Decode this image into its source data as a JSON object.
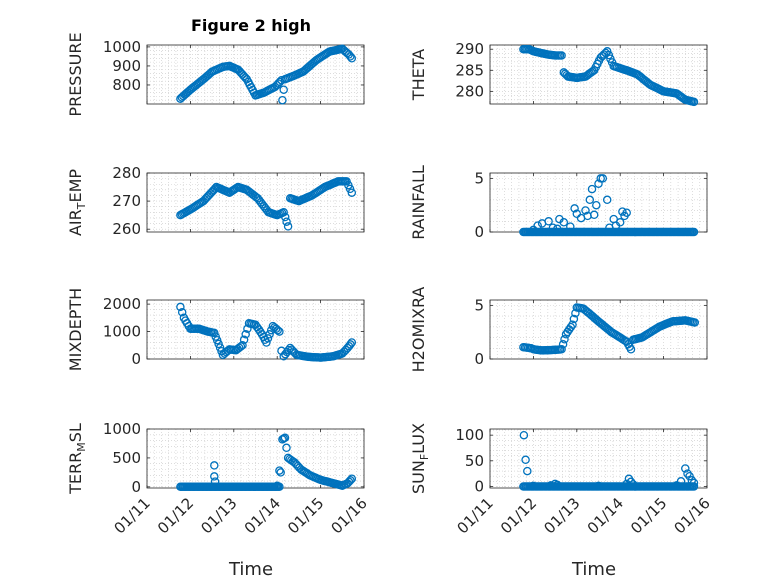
{
  "figure": {
    "title": "Figure 2 high"
  },
  "x_axis": {
    "label": "Time",
    "tick_labels": [
      "01/11",
      "01/12",
      "01/13",
      "01/14",
      "01/15",
      "01/16"
    ],
    "range_days": [
      "01/11",
      "01/16"
    ]
  },
  "colors": {
    "marker": "#0072BD",
    "grid": "#c8c8c8",
    "axis": "#262626"
  },
  "chart_data": [
    {
      "type": "scatter",
      "id": "pressure",
      "ylabel": {
        "main": "PRESSURE",
        "sub": "",
        "tail": ""
      },
      "yticks": [
        "800",
        "900",
        "1000"
      ],
      "ytick_values": [
        800,
        900,
        1000
      ],
      "ylim": [
        700,
        1010
      ],
      "keypoints": [
        [
          11.77,
          728
        ],
        [
          12.0,
          775
        ],
        [
          12.3,
          830
        ],
        [
          12.5,
          870
        ],
        [
          12.75,
          895
        ],
        [
          12.9,
          900
        ],
        [
          13.1,
          880
        ],
        [
          13.3,
          830
        ],
        [
          13.5,
          745
        ],
        [
          13.7,
          760
        ],
        [
          13.95,
          790
        ],
        [
          14.1,
          825
        ],
        [
          14.12,
          720
        ],
        [
          14.18,
          830
        ],
        [
          14.4,
          850
        ],
        [
          14.6,
          870
        ],
        [
          14.9,
          930
        ],
        [
          15.2,
          975
        ],
        [
          15.5,
          990
        ],
        [
          15.65,
          960
        ],
        [
          15.72,
          940
        ]
      ]
    },
    {
      "type": "scatter",
      "id": "theta",
      "ylabel": {
        "main": "THETA",
        "sub": "",
        "tail": ""
      },
      "yticks": [
        "280",
        "285",
        "290"
      ],
      "ytick_values": [
        280,
        285,
        290
      ],
      "ylim": [
        277,
        291
      ],
      "keypoints": [
        [
          11.77,
          290
        ],
        [
          11.9,
          290
        ],
        [
          12.0,
          289.5
        ],
        [
          12.3,
          288.8
        ],
        [
          12.5,
          288.5
        ],
        [
          12.65,
          288.5
        ],
        [
          12.7,
          284.5
        ],
        [
          12.8,
          283.5
        ],
        [
          13.0,
          283.2
        ],
        [
          13.2,
          283.5
        ],
        [
          13.4,
          285
        ],
        [
          13.55,
          288
        ],
        [
          13.7,
          289.5
        ],
        [
          13.85,
          286
        ],
        [
          14.0,
          285.5
        ],
        [
          14.2,
          284.8
        ],
        [
          14.4,
          284
        ],
        [
          14.7,
          281.5
        ],
        [
          15.0,
          280
        ],
        [
          15.3,
          279.5
        ],
        [
          15.5,
          278
        ],
        [
          15.7,
          277.5
        ]
      ]
    },
    {
      "type": "scatter",
      "id": "air_temp",
      "ylabel": {
        "main": "AIR",
        "sub": "T",
        "tail": "EMP"
      },
      "yticks": [
        "260",
        "270",
        "280"
      ],
      "ytick_values": [
        260,
        270,
        280
      ],
      "ylim": [
        259,
        280
      ],
      "keypoints": [
        [
          11.77,
          265
        ],
        [
          12.0,
          267
        ],
        [
          12.3,
          270
        ],
        [
          12.6,
          275
        ],
        [
          12.9,
          273
        ],
        [
          13.1,
          275
        ],
        [
          13.3,
          274
        ],
        [
          13.55,
          271
        ],
        [
          13.8,
          266
        ],
        [
          14.0,
          265
        ],
        [
          14.15,
          266
        ],
        [
          14.25,
          261
        ],
        [
          14.3,
          271
        ],
        [
          14.5,
          270
        ],
        [
          14.8,
          272
        ],
        [
          15.1,
          275
        ],
        [
          15.4,
          277
        ],
        [
          15.6,
          277
        ],
        [
          15.72,
          273
        ]
      ]
    },
    {
      "type": "scatter",
      "id": "rainfall",
      "ylabel": {
        "main": "RAINFALL",
        "sub": "",
        "tail": ""
      },
      "yticks": [
        "0",
        "5"
      ],
      "ytick_values": [
        0,
        5
      ],
      "ylim": [
        0,
        5.5
      ],
      "baseline_span": [
        11.77,
        15.72
      ],
      "spikes": [
        [
          12.0,
          0.2
        ],
        [
          12.1,
          0.6
        ],
        [
          12.2,
          0.8
        ],
        [
          12.35,
          1.0
        ],
        [
          12.45,
          0.4
        ],
        [
          12.55,
          0.3
        ],
        [
          12.6,
          1.2
        ],
        [
          12.7,
          0.9
        ],
        [
          12.85,
          0.5
        ],
        [
          12.95,
          2.2
        ],
        [
          13.0,
          1.7
        ],
        [
          13.1,
          1.3
        ],
        [
          13.2,
          2.0
        ],
        [
          13.25,
          1.5
        ],
        [
          13.3,
          3.0
        ],
        [
          13.35,
          4.0
        ],
        [
          13.4,
          1.6
        ],
        [
          13.45,
          2.5
        ],
        [
          13.5,
          4.5
        ],
        [
          13.55,
          5.0
        ],
        [
          13.6,
          5.0
        ],
        [
          13.7,
          3.0
        ],
        [
          13.75,
          0.4
        ],
        [
          13.85,
          1.2
        ],
        [
          13.9,
          0.6
        ],
        [
          14.0,
          0.9
        ],
        [
          14.05,
          1.9
        ],
        [
          14.1,
          1.5
        ],
        [
          14.15,
          1.8
        ]
      ]
    },
    {
      "type": "scatter",
      "id": "mixdepth",
      "ylabel": {
        "main": "MIXDEPTH",
        "sub": "",
        "tail": ""
      },
      "yticks": [
        "0",
        "1000",
        "2000"
      ],
      "ytick_values": [
        0,
        1000,
        2000
      ],
      "ylim": [
        0,
        2150
      ],
      "keypoints": [
        [
          11.77,
          1900
        ],
        [
          11.85,
          1500
        ],
        [
          12.0,
          1100
        ],
        [
          12.2,
          1100
        ],
        [
          12.4,
          1000
        ],
        [
          12.55,
          950
        ],
        [
          12.65,
          550
        ],
        [
          12.75,
          150
        ],
        [
          12.9,
          350
        ],
        [
          13.05,
          320
        ],
        [
          13.2,
          500
        ],
        [
          13.35,
          1300
        ],
        [
          13.5,
          1250
        ],
        [
          13.65,
          900
        ],
        [
          13.75,
          600
        ],
        [
          13.9,
          1200
        ],
        [
          14.05,
          1000
        ],
        [
          14.1,
          300
        ],
        [
          14.15,
          100
        ],
        [
          14.3,
          400
        ],
        [
          14.45,
          150
        ],
        [
          14.7,
          80
        ],
        [
          15.0,
          50
        ],
        [
          15.3,
          100
        ],
        [
          15.5,
          200
        ],
        [
          15.62,
          400
        ],
        [
          15.72,
          600
        ]
      ]
    },
    {
      "type": "scatter",
      "id": "h2omixra",
      "ylabel": {
        "main": "H2OMIXRA",
        "sub": "",
        "tail": ""
      },
      "yticks": [
        "0",
        "5"
      ],
      "ytick_values": [
        0,
        5
      ],
      "ylim": [
        0,
        5.5
      ],
      "keypoints": [
        [
          11.77,
          1.1
        ],
        [
          11.95,
          1.0
        ],
        [
          12.0,
          0.9
        ],
        [
          12.2,
          0.8
        ],
        [
          12.5,
          0.85
        ],
        [
          12.65,
          0.9
        ],
        [
          12.75,
          2.3
        ],
        [
          12.9,
          3.2
        ],
        [
          13.0,
          4.8
        ],
        [
          13.15,
          4.7
        ],
        [
          13.3,
          4.2
        ],
        [
          13.5,
          3.5
        ],
        [
          13.8,
          2.5
        ],
        [
          14.0,
          2.0
        ],
        [
          14.15,
          1.6
        ],
        [
          14.25,
          0.9
        ],
        [
          14.3,
          1.8
        ],
        [
          14.5,
          2.0
        ],
        [
          14.7,
          2.5
        ],
        [
          14.9,
          3.0
        ],
        [
          15.2,
          3.5
        ],
        [
          15.5,
          3.6
        ],
        [
          15.72,
          3.4
        ]
      ]
    },
    {
      "type": "scatter",
      "id": "terr_msl",
      "ylabel": {
        "main": "TERR",
        "sub": "M",
        "tail": "SL"
      },
      "yticks": [
        "0",
        "500",
        "1000"
      ],
      "ytick_values": [
        0,
        500,
        1000
      ],
      "ylim": [
        -20,
        1000
      ],
      "baseline_span": [
        11.77,
        14.05
      ],
      "spikes": [
        [
          12.55,
          370
        ],
        [
          12.55,
          180
        ],
        [
          12.57,
          90
        ],
        [
          14.0,
          20
        ],
        [
          14.05,
          280
        ]
      ],
      "keypoints": [
        [
          14.08,
          250
        ],
        [
          14.12,
          820
        ],
        [
          14.18,
          850
        ],
        [
          14.25,
          500
        ],
        [
          14.4,
          420
        ],
        [
          14.55,
          300
        ],
        [
          14.75,
          200
        ],
        [
          15.0,
          120
        ],
        [
          15.3,
          60
        ],
        [
          15.5,
          20
        ],
        [
          15.62,
          60
        ],
        [
          15.72,
          140
        ]
      ]
    },
    {
      "type": "scatter",
      "id": "sun_flux",
      "ylabel": {
        "main": "SUN",
        "sub": "F",
        "tail": "LUX"
      },
      "yticks": [
        "0",
        "50",
        "100"
      ],
      "ytick_values": [
        0,
        50,
        100
      ],
      "ylim": [
        -3,
        112
      ],
      "baseline_span": [
        11.77,
        15.72
      ],
      "spikes": [
        [
          11.78,
          100
        ],
        [
          11.82,
          52
        ],
        [
          11.86,
          30
        ],
        [
          12.0,
          1
        ],
        [
          12.4,
          2
        ],
        [
          12.5,
          5
        ],
        [
          12.55,
          3
        ],
        [
          13.5,
          1
        ],
        [
          14.15,
          5
        ],
        [
          14.2,
          15
        ],
        [
          14.25,
          9
        ],
        [
          14.3,
          4
        ],
        [
          15.3,
          2
        ],
        [
          15.4,
          10
        ],
        [
          15.5,
          35
        ],
        [
          15.55,
          25
        ],
        [
          15.6,
          20
        ],
        [
          15.65,
          12
        ],
        [
          15.7,
          7
        ]
      ]
    }
  ]
}
